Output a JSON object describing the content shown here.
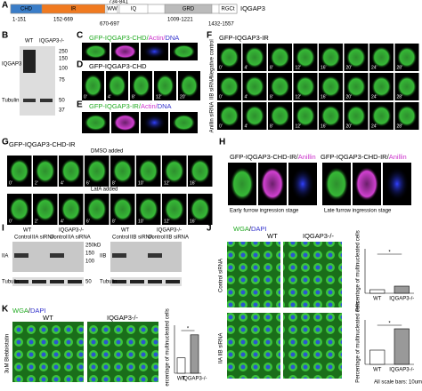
{
  "panel_labels": [
    "A",
    "B",
    "C",
    "D",
    "E",
    "F",
    "G",
    "H",
    "I",
    "J",
    "K"
  ],
  "a": {
    "domains": [
      "CHD",
      "IR",
      "WW",
      "IQ",
      "GRD",
      "RGCt"
    ],
    "protein": "IQGAP3",
    "ranges": [
      "1-151",
      "152-669",
      "734-841",
      "670-697",
      "1009-1221",
      "1432-1557"
    ]
  },
  "b": {
    "lanes": [
      "WT",
      "IQGAP3-/-"
    ],
    "bands": [
      "IQGAP3",
      "Tubulin"
    ],
    "markers": [
      "250",
      "150",
      "100",
      "75",
      "50",
      "37"
    ]
  },
  "c": {
    "title": [
      "GFP-IQGAP3-CHD",
      "/",
      "Actin",
      "/",
      "DNA"
    ]
  },
  "d": {
    "title": "GFP-IQGAP3-CHD",
    "times": [
      "0'",
      "4'",
      "8'",
      "12'",
      "20'"
    ]
  },
  "e": {
    "title": [
      "GFP-IQGAP3-IR",
      "/",
      "Actin",
      "/",
      "DNA"
    ]
  },
  "f": {
    "title": "GFP-IQGAP3-IR",
    "rows": [
      "Negative control",
      "IIB siRNA",
      "Anillin siRNA"
    ],
    "times": [
      "0'",
      "4'",
      "8'",
      "12'",
      "16'",
      "20'",
      "24'",
      "28'"
    ]
  },
  "g": {
    "title": "GFP-IQGAP3-CHD-IR",
    "row_labels": [
      "DMSO added",
      "LatA added"
    ],
    "times": [
      "0'",
      "2'",
      "4'",
      "6'",
      "8'",
      "10'",
      "12'",
      "16'"
    ]
  },
  "h": {
    "titles": [
      [
        "GFP-IQGAP3-CHD-IR",
        "/",
        "Anillin"
      ],
      [
        "GFP-IQGAP3-CHD-IR",
        "/",
        "Anillin"
      ]
    ],
    "stages": [
      "Early furrow ingression stage",
      "Late furrow ingression stage"
    ]
  },
  "i": {
    "lanes": [
      "WT",
      "IQGAP3-/-"
    ],
    "conditions": [
      [
        "Control",
        "IIA siRNA",
        "Control",
        "IIA siRNA"
      ],
      [
        "Control",
        "IIB siRNA",
        "Control",
        "IIB siRNA"
      ]
    ],
    "bands": [
      "IIA",
      "IIB",
      "Tubulin",
      "Tubulin"
    ],
    "markers": [
      "250kD",
      "150",
      "100",
      "50"
    ]
  },
  "j": {
    "title": [
      "WGA",
      "/",
      "DAPI"
    ],
    "columns": [
      "WT",
      "IQGAP3-/-"
    ],
    "rows": [
      "Control siRNA",
      "IIA IIB siRNA"
    ],
    "charts": [
      {
        "type": "bar",
        "categories": [
          "WT",
          "IQGAP3-/-"
        ],
        "values": [
          2,
          4
        ],
        "ylim": [
          0,
          25
        ],
        "ylabel": "Percentage of multinucleated cells",
        "annotation": "*"
      },
      {
        "type": "bar",
        "categories": [
          "WT",
          "IQGAP3-/-"
        ],
        "values": [
          8,
          20
        ],
        "ylim": [
          0,
          25
        ],
        "ylabel": "Percentage of multinucleated cells",
        "annotation": "*"
      }
    ]
  },
  "k": {
    "title": [
      "WGA",
      "/",
      "DAPI"
    ],
    "columns": [
      "WT",
      "IQGAP3-/-"
    ],
    "row": "3uM Blebbistatin",
    "chart": {
      "type": "bar",
      "categories": [
        "WT",
        "IQGAP3-/-"
      ],
      "values": [
        8,
        20
      ],
      "ylim": [
        0,
        25
      ],
      "ylabel": "Percentage of multinucleated cells",
      "annotation": "*"
    }
  },
  "footer": "All scale bars: 10um"
}
